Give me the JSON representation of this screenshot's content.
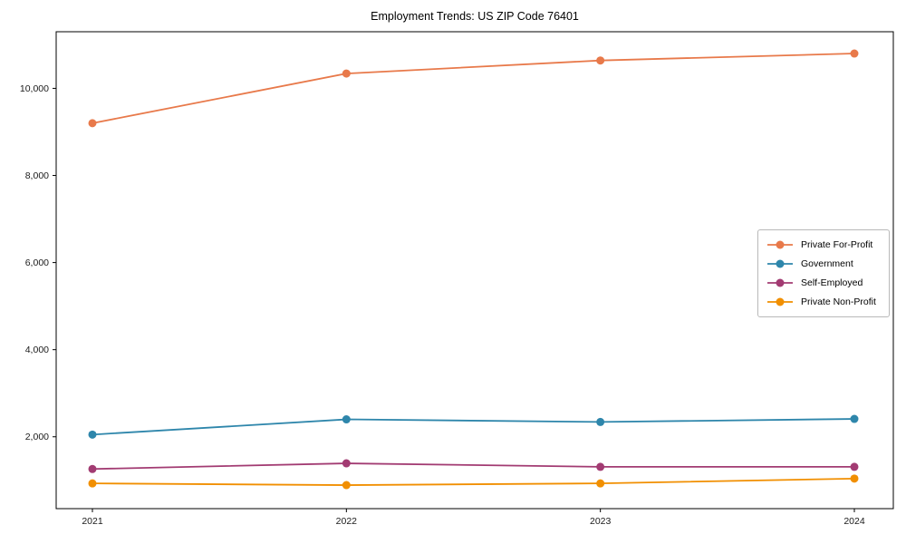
{
  "chart_data": {
    "type": "line",
    "title": "Employment Trends: US ZIP Code 76401",
    "categories": [
      "2021",
      "2022",
      "2023",
      "2024"
    ],
    "series": [
      {
        "name": "Private For-Profit",
        "color": "#E8794A",
        "values": [
          9200,
          10340,
          10640,
          10800
        ]
      },
      {
        "name": "Government",
        "color": "#2E86AB",
        "values": [
          2050,
          2400,
          2340,
          2410
        ]
      },
      {
        "name": "Self-Employed",
        "color": "#A23B72",
        "values": [
          1260,
          1390,
          1310,
          1310
        ]
      },
      {
        "name": "Private Non-Profit",
        "color": "#F18F01",
        "values": [
          930,
          890,
          930,
          1040
        ]
      }
    ],
    "xlabel": "",
    "ylabel": "",
    "ylim": [
      350,
      11300
    ],
    "yticks": [
      2000,
      4000,
      6000,
      8000,
      10000
    ],
    "ytick_labels": [
      "2,000",
      "4,000",
      "6,000",
      "8,000",
      "10,000"
    ],
    "grid": false,
    "legend_position": "center-right",
    "axis_color": "#000000",
    "background_color": "#ffffff"
  }
}
